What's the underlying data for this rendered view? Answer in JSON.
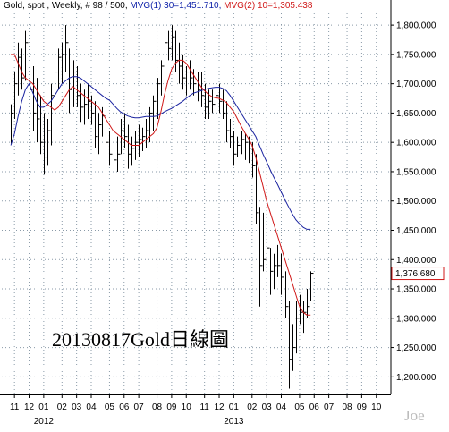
{
  "header": {
    "symbol_text": "Gold, spot , Weekly, # 98 / 500,",
    "ma1_text": "MVG(1) 30=1,451.710,",
    "ma2_text": "MVG(2) 10=1,305.438"
  },
  "annotation": "20130817Gold日線圖",
  "watermark": "Joe",
  "chart_data": {
    "type": "ohlc",
    "ylim": [
      1170,
      1820
    ],
    "y_ticks": [
      1200,
      1250,
      1300,
      1350,
      1400,
      1450,
      1500,
      1550,
      1600,
      1650,
      1700,
      1750,
      1800
    ],
    "y_tick_labels": [
      "1,200.000",
      "1,250.000",
      "1,300.000",
      "1,350.000",
      "1,400.000",
      "1,450.000",
      "1,500.000",
      "1,550.000",
      "1,600.000",
      "1,650.000",
      "1,700.000",
      "1,750.000",
      "1,800.000"
    ],
    "last_price": 1376.68,
    "last_price_label": "1,376.680",
    "months": [
      {
        "label": "11",
        "week": 2
      },
      {
        "label": "12",
        "week": 6
      },
      {
        "label": "01",
        "week": 10
      },
      {
        "label": "02",
        "week": 15
      },
      {
        "label": "03",
        "week": 19
      },
      {
        "label": "04",
        "week": 23
      },
      {
        "label": "05",
        "week": 28
      },
      {
        "label": "06",
        "week": 32
      },
      {
        "label": "07",
        "week": 36
      },
      {
        "label": "08",
        "week": 41
      },
      {
        "label": "09",
        "week": 45
      },
      {
        "label": "10",
        "week": 49
      },
      {
        "label": "11",
        "week": 54
      },
      {
        "label": "12",
        "week": 58
      },
      {
        "label": "01",
        "week": 62
      },
      {
        "label": "02",
        "week": 67
      },
      {
        "label": "03",
        "week": 71
      },
      {
        "label": "04",
        "week": 75
      },
      {
        "label": "05",
        "week": 80
      },
      {
        "label": "06",
        "week": 84
      },
      {
        "label": "07",
        "week": 88
      },
      {
        "label": "08",
        "week": 93
      },
      {
        "label": "09",
        "week": 97
      },
      {
        "label": "10",
        "week": 101
      }
    ],
    "years": [
      {
        "label": "2012",
        "week": 10
      },
      {
        "label": "2013",
        "week": 62
      }
    ],
    "weeks_span": 104,
    "bars": [
      [
        1665,
        1598,
        1650
      ],
      [
        1720,
        1640,
        1700
      ],
      [
        1770,
        1680,
        1745
      ],
      [
        1760,
        1690,
        1710
      ],
      [
        1790,
        1705,
        1770
      ],
      [
        1765,
        1660,
        1690
      ],
      [
        1730,
        1620,
        1650
      ],
      [
        1710,
        1600,
        1640
      ],
      [
        1680,
        1580,
        1600
      ],
      [
        1650,
        1545,
        1575
      ],
      [
        1640,
        1560,
        1620
      ],
      [
        1700,
        1595,
        1680
      ],
      [
        1730,
        1650,
        1720
      ],
      [
        1760,
        1690,
        1745
      ],
      [
        1770,
        1700,
        1750
      ],
      [
        1800,
        1720,
        1770
      ],
      [
        1760,
        1650,
        1690
      ],
      [
        1740,
        1660,
        1720
      ],
      [
        1730,
        1660,
        1680
      ],
      [
        1700,
        1635,
        1660
      ],
      [
        1690,
        1630,
        1665
      ],
      [
        1700,
        1640,
        1670
      ],
      [
        1680,
        1630,
        1650
      ],
      [
        1670,
        1590,
        1610
      ],
      [
        1650,
        1580,
        1630
      ],
      [
        1660,
        1610,
        1645
      ],
      [
        1640,
        1580,
        1600
      ],
      [
        1620,
        1560,
        1580
      ],
      [
        1600,
        1535,
        1570
      ],
      [
        1610,
        1550,
        1580
      ],
      [
        1640,
        1580,
        1620
      ],
      [
        1650,
        1590,
        1610
      ],
      [
        1630,
        1555,
        1580
      ],
      [
        1610,
        1560,
        1590
      ],
      [
        1620,
        1570,
        1600
      ],
      [
        1630,
        1575,
        1605
      ],
      [
        1625,
        1585,
        1610
      ],
      [
        1640,
        1590,
        1620
      ],
      [
        1660,
        1600,
        1650
      ],
      [
        1680,
        1620,
        1670
      ],
      [
        1710,
        1640,
        1700
      ],
      [
        1740,
        1680,
        1730
      ],
      [
        1780,
        1710,
        1770
      ],
      [
        1790,
        1740,
        1760
      ],
      [
        1800,
        1740,
        1780
      ],
      [
        1790,
        1720,
        1740
      ],
      [
        1770,
        1700,
        1730
      ],
      [
        1750,
        1690,
        1710
      ],
      [
        1730,
        1680,
        1720
      ],
      [
        1740,
        1690,
        1710
      ],
      [
        1725,
        1680,
        1700
      ],
      [
        1720,
        1670,
        1690
      ],
      [
        1720,
        1660,
        1680
      ],
      [
        1700,
        1640,
        1660
      ],
      [
        1690,
        1640,
        1670
      ],
      [
        1690,
        1650,
        1665
      ],
      [
        1700,
        1660,
        1680
      ],
      [
        1700,
        1650,
        1670
      ],
      [
        1690,
        1640,
        1650
      ],
      [
        1670,
        1600,
        1620
      ],
      [
        1640,
        1590,
        1610
      ],
      [
        1620,
        1560,
        1580
      ],
      [
        1610,
        1575,
        1595
      ],
      [
        1620,
        1580,
        1605
      ],
      [
        1615,
        1570,
        1600
      ],
      [
        1610,
        1565,
        1590
      ],
      [
        1600,
        1540,
        1560
      ],
      [
        1580,
        1460,
        1480
      ],
      [
        1490,
        1320,
        1390
      ],
      [
        1480,
        1380,
        1400
      ],
      [
        1450,
        1380,
        1420
      ],
      [
        1420,
        1340,
        1380
      ],
      [
        1410,
        1350,
        1390
      ],
      [
        1425,
        1370,
        1390
      ],
      [
        1410,
        1340,
        1370
      ],
      [
        1380,
        1300,
        1320
      ],
      [
        1330,
        1180,
        1230
      ],
      [
        1290,
        1210,
        1250
      ],
      [
        1330,
        1240,
        1300
      ],
      [
        1340,
        1290,
        1310
      ],
      [
        1330,
        1275,
        1310
      ],
      [
        1350,
        1300,
        1320
      ],
      [
        1380,
        1330,
        1376.68
      ]
    ],
    "series": [
      {
        "name": "MVG(1) 30",
        "color": "#1a23a0",
        "values": [
          1595,
          1615,
          1645,
          1670,
          1690,
          1700,
          1685,
          1670,
          1660,
          1660,
          1665,
          1670,
          1680,
          1690,
          1700,
          1705,
          1710,
          1712,
          1712,
          1710,
          1705,
          1700,
          1695,
          1690,
          1685,
          1680,
          1675,
          1672,
          1665,
          1658,
          1652,
          1648,
          1645,
          1643,
          1642,
          1642,
          1643,
          1644,
          1644,
          1644,
          1645,
          1648,
          1652,
          1655,
          1658,
          1662,
          1666,
          1670,
          1675,
          1680,
          1684,
          1686,
          1688,
          1690,
          1692,
          1693,
          1694,
          1694,
          1692,
          1688,
          1680,
          1670,
          1660,
          1650,
          1640,
          1630,
          1620,
          1610,
          1595,
          1580,
          1567,
          1553,
          1540,
          1528,
          1515,
          1502,
          1490,
          1478,
          1468,
          1461,
          1455,
          1451.71,
          1451.71
        ]
      },
      {
        "name": "MVG(2) 10",
        "color": "#d01818",
        "values": [
          1750,
          1750,
          1735,
          1720,
          1710,
          1705,
          1700,
          1690,
          1680,
          1670,
          1665,
          1660,
          1655,
          1660,
          1670,
          1680,
          1690,
          1695,
          1690,
          1685,
          1680,
          1675,
          1670,
          1665,
          1660,
          1650,
          1640,
          1630,
          1620,
          1615,
          1610,
          1605,
          1600,
          1595,
          1595,
          1595,
          1600,
          1605,
          1610,
          1615,
          1625,
          1650,
          1680,
          1705,
          1725,
          1735,
          1740,
          1740,
          1735,
          1725,
          1715,
          1705,
          1695,
          1688,
          1682,
          1678,
          1676,
          1675,
          1672,
          1668,
          1660,
          1652,
          1640,
          1628,
          1617,
          1607,
          1595,
          1575,
          1550,
          1525,
          1500,
          1480,
          1460,
          1440,
          1420,
          1400,
          1380,
          1360,
          1340,
          1320,
          1310,
          1305.438,
          1305.438
        ]
      }
    ]
  }
}
